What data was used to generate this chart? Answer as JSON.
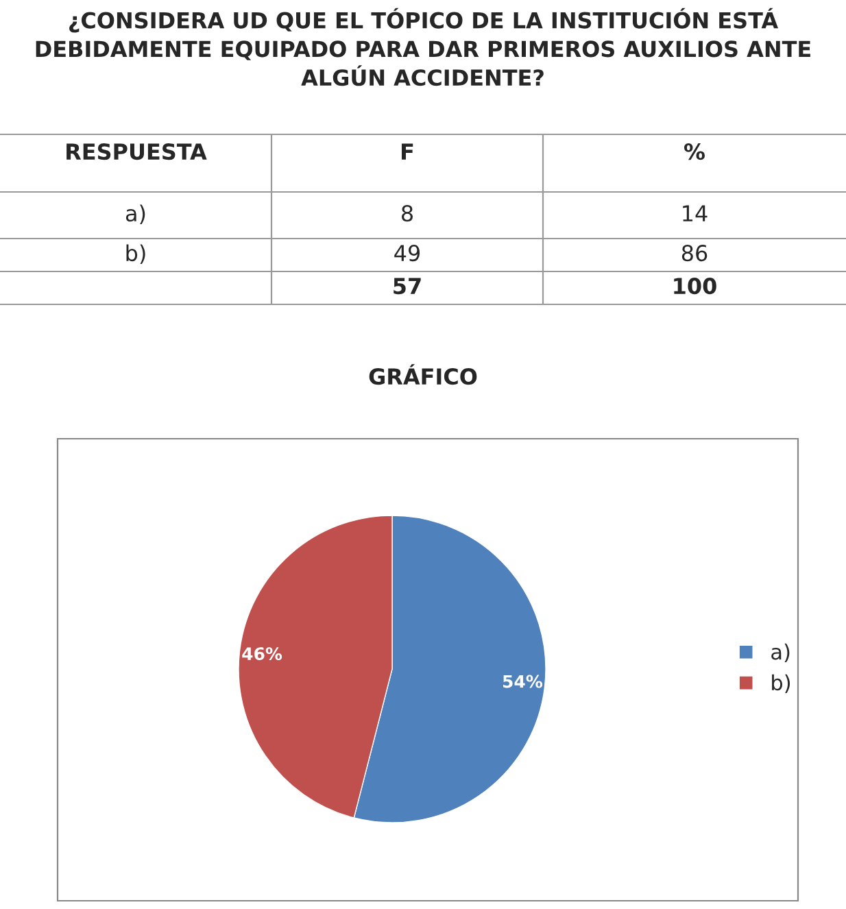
{
  "chart_data": [
    {
      "type": "other",
      "title": "¿CONSIDERA UD QUE EL TÓPICO DE LA INSTITUCIÓN ESTÁ DEBIDAMENTE EQUIPADO PARA DAR PRIMEROS AUXILIOS ANTE ALGÚN ACCIDENTE?",
      "annotations": [
        "RESPUESTA",
        "F",
        "%",
        "a)",
        "8",
        "14",
        "b)",
        "49",
        "86",
        "57",
        "100"
      ]
    },
    {
      "type": "pie",
      "title": "GRÁFICO",
      "categories": [
        "a)",
        "b)"
      ],
      "values": [
        54,
        46
      ],
      "colors": [
        "#4f81bd",
        "#c0504d"
      ],
      "value_labels": [
        "54%",
        "46%"
      ],
      "legend": "right"
    }
  ]
}
